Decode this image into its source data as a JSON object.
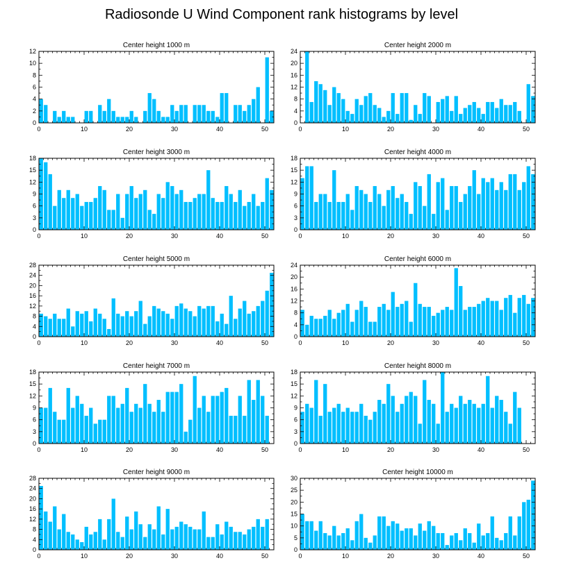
{
  "title": "Radiosonde U Wind Component rank histograms by level",
  "style": {
    "bar_color": "#00bfff",
    "axis_color": "#000000"
  },
  "chart_data": [
    {
      "type": "bar",
      "title": "Center height 1000 m",
      "x": [
        0,
        1,
        2,
        3,
        4,
        5,
        6,
        7,
        8,
        9,
        10,
        11,
        12,
        13,
        14,
        15,
        16,
        17,
        18,
        19,
        20,
        21,
        22,
        23,
        24,
        25,
        26,
        27,
        28,
        29,
        30,
        31,
        32,
        33,
        34,
        35,
        36,
        37,
        38,
        39,
        40,
        41,
        42,
        43,
        44,
        45,
        46,
        47,
        48,
        49,
        50,
        51
      ],
      "values": [
        4,
        3,
        0,
        2,
        1,
        2,
        1,
        1,
        0,
        0,
        2,
        2,
        0,
        3,
        2,
        4,
        2,
        1,
        1,
        1,
        2,
        1,
        0,
        2,
        5,
        4,
        2,
        1,
        1,
        3,
        2,
        3,
        3,
        0,
        3,
        3,
        3,
        2,
        2,
        1,
        5,
        5,
        0,
        3,
        3,
        2,
        3,
        4,
        6,
        0,
        11,
        2
      ],
      "xlim": [
        0,
        52
      ],
      "ylim": [
        0,
        12
      ],
      "yticks": [
        0,
        2,
        4,
        6,
        8,
        10,
        12
      ],
      "xticks": [
        0,
        10,
        20,
        30,
        40,
        50
      ]
    },
    {
      "type": "bar",
      "title": "Center height 2000 m",
      "x": [
        0,
        1,
        2,
        3,
        4,
        5,
        6,
        7,
        8,
        9,
        10,
        11,
        12,
        13,
        14,
        15,
        16,
        17,
        18,
        19,
        20,
        21,
        22,
        23,
        24,
        25,
        26,
        27,
        28,
        29,
        30,
        31,
        32,
        33,
        34,
        35,
        36,
        37,
        38,
        39,
        40,
        41,
        42,
        43,
        44,
        45,
        46,
        47,
        48,
        49,
        50,
        51
      ],
      "values": [
        0,
        24,
        7,
        14,
        13,
        11,
        6,
        12,
        10,
        8,
        4,
        3,
        8,
        6,
        9,
        10,
        6,
        5,
        2,
        4,
        10,
        3,
        10,
        10,
        1,
        6,
        3,
        10,
        9,
        0,
        7,
        8,
        9,
        4,
        9,
        3,
        5,
        6,
        7,
        5,
        3,
        7,
        7,
        5,
        8,
        6,
        6,
        7,
        4,
        0,
        13,
        9
      ],
      "xlim": [
        0,
        52
      ],
      "ylim": [
        0,
        24
      ],
      "yticks": [
        0,
        4,
        8,
        12,
        16,
        20,
        24
      ],
      "xticks": [
        0,
        10,
        20,
        30,
        40,
        50
      ]
    },
    {
      "type": "bar",
      "title": "Center height 3000 m",
      "x": [
        0,
        1,
        2,
        3,
        4,
        5,
        6,
        7,
        8,
        9,
        10,
        11,
        12,
        13,
        14,
        15,
        16,
        17,
        18,
        19,
        20,
        21,
        22,
        23,
        24,
        25,
        26,
        27,
        28,
        29,
        30,
        31,
        32,
        33,
        34,
        35,
        36,
        37,
        38,
        39,
        40,
        41,
        42,
        43,
        44,
        45,
        46,
        47,
        48,
        49,
        50,
        51
      ],
      "values": [
        18,
        17,
        14,
        6,
        10,
        8,
        10,
        8,
        9,
        6,
        7,
        7,
        8,
        11,
        10,
        5,
        5,
        9,
        3,
        9,
        11,
        8,
        9,
        10,
        5,
        4,
        9,
        8,
        12,
        11,
        9,
        10,
        7,
        7,
        8,
        9,
        9,
        15,
        8,
        7,
        7,
        11,
        9,
        7,
        10,
        6,
        7,
        9,
        6,
        7,
        13,
        10
      ],
      "xlim": [
        0,
        52
      ],
      "ylim": [
        0,
        18
      ],
      "yticks": [
        0,
        3,
        6,
        9,
        12,
        15,
        18
      ],
      "xticks": [
        0,
        10,
        20,
        30,
        40,
        50
      ]
    },
    {
      "type": "bar",
      "title": "Center height 4000 m",
      "x": [
        0,
        1,
        2,
        3,
        4,
        5,
        6,
        7,
        8,
        9,
        10,
        11,
        12,
        13,
        14,
        15,
        16,
        17,
        18,
        19,
        20,
        21,
        22,
        23,
        24,
        25,
        26,
        27,
        28,
        29,
        30,
        31,
        32,
        33,
        34,
        35,
        36,
        37,
        38,
        39,
        40,
        41,
        42,
        43,
        44,
        45,
        46,
        47,
        48,
        49,
        50,
        51
      ],
      "values": [
        13,
        16,
        16,
        7,
        9,
        9,
        7,
        15,
        7,
        7,
        9,
        5,
        11,
        10,
        9,
        7,
        11,
        9,
        6,
        10,
        11,
        8,
        9,
        7,
        4,
        12,
        11,
        6,
        14,
        4,
        12,
        13,
        5,
        11,
        11,
        7,
        9,
        11,
        15,
        9,
        13,
        12,
        13,
        10,
        12,
        10,
        14,
        14,
        10,
        12,
        16,
        14
      ],
      "xlim": [
        0,
        52
      ],
      "ylim": [
        0,
        18
      ],
      "yticks": [
        0,
        3,
        6,
        9,
        12,
        15,
        18
      ],
      "xticks": [
        0,
        10,
        20,
        30,
        40,
        50
      ]
    },
    {
      "type": "bar",
      "title": "Center height 5000 m",
      "x": [
        0,
        1,
        2,
        3,
        4,
        5,
        6,
        7,
        8,
        9,
        10,
        11,
        12,
        13,
        14,
        15,
        16,
        17,
        18,
        19,
        20,
        21,
        22,
        23,
        24,
        25,
        26,
        27,
        28,
        29,
        30,
        31,
        32,
        33,
        34,
        35,
        36,
        37,
        38,
        39,
        40,
        41,
        42,
        43,
        44,
        45,
        46,
        47,
        48,
        49,
        50,
        51
      ],
      "values": [
        9,
        8,
        7,
        9,
        7,
        7,
        11,
        4,
        10,
        9,
        10,
        6,
        11,
        9,
        7,
        3,
        15,
        9,
        8,
        10,
        8,
        10,
        14,
        5,
        8,
        12,
        11,
        10,
        9,
        7,
        12,
        13,
        11,
        10,
        8,
        12,
        11,
        12,
        12,
        6,
        9,
        5,
        16,
        7,
        11,
        14,
        9,
        10,
        12,
        14,
        18,
        25
      ],
      "xlim": [
        0,
        52
      ],
      "ylim": [
        0,
        28
      ],
      "yticks": [
        0,
        4,
        8,
        12,
        16,
        20,
        24,
        28
      ],
      "xticks": [
        0,
        10,
        20,
        30,
        40,
        50
      ]
    },
    {
      "type": "bar",
      "title": "Center height 6000 m",
      "x": [
        0,
        1,
        2,
        3,
        4,
        5,
        6,
        7,
        8,
        9,
        10,
        11,
        12,
        13,
        14,
        15,
        16,
        17,
        18,
        19,
        20,
        21,
        22,
        23,
        24,
        25,
        26,
        27,
        28,
        29,
        30,
        31,
        32,
        33,
        34,
        35,
        36,
        37,
        38,
        39,
        40,
        41,
        42,
        43,
        44,
        45,
        46,
        47,
        48,
        49,
        50,
        51
      ],
      "values": [
        9,
        4,
        7,
        6,
        6,
        7,
        9,
        6,
        8,
        9,
        11,
        5,
        9,
        12,
        10,
        5,
        5,
        10,
        11,
        9,
        15,
        10,
        11,
        12,
        5,
        18,
        11,
        10,
        10,
        7,
        8,
        9,
        10,
        9,
        23,
        17,
        9,
        10,
        10,
        11,
        12,
        13,
        12,
        12,
        9,
        13,
        14,
        8,
        13,
        14,
        11,
        13
      ],
      "xlim": [
        0,
        52
      ],
      "ylim": [
        0,
        24
      ],
      "yticks": [
        0,
        4,
        8,
        12,
        16,
        20,
        24
      ],
      "xticks": [
        0,
        10,
        20,
        30,
        40,
        50
      ]
    },
    {
      "type": "bar",
      "title": "Center height 7000 m",
      "x": [
        0,
        1,
        2,
        3,
        4,
        5,
        6,
        7,
        8,
        9,
        10,
        11,
        12,
        13,
        14,
        15,
        16,
        17,
        18,
        19,
        20,
        21,
        22,
        23,
        24,
        25,
        26,
        27,
        28,
        29,
        30,
        31,
        32,
        33,
        34,
        35,
        36,
        37,
        38,
        39,
        40,
        41,
        42,
        43,
        44,
        45,
        46,
        47,
        48,
        49,
        50,
        51
      ],
      "values": [
        9,
        9,
        14,
        8,
        6,
        6,
        14,
        9,
        12,
        10,
        7,
        9,
        5,
        6,
        6,
        12,
        12,
        9,
        10,
        14,
        8,
        10,
        9,
        15,
        10,
        8,
        11,
        8,
        13,
        13,
        13,
        15,
        3,
        6,
        17,
        9,
        12,
        8,
        12,
        12,
        13,
        14,
        7,
        7,
        12,
        7,
        16,
        11,
        16,
        12,
        7,
        0
      ],
      "xlim": [
        0,
        52
      ],
      "ylim": [
        0,
        18
      ],
      "yticks": [
        0,
        3,
        6,
        9,
        12,
        15,
        18
      ],
      "xticks": [
        0,
        10,
        20,
        30,
        40,
        50
      ]
    },
    {
      "type": "bar",
      "title": "Center height 8000 m",
      "x": [
        0,
        1,
        2,
        3,
        4,
        5,
        6,
        7,
        8,
        9,
        10,
        11,
        12,
        13,
        14,
        15,
        16,
        17,
        18,
        19,
        20,
        21,
        22,
        23,
        24,
        25,
        26,
        27,
        28,
        29,
        30,
        31,
        32,
        33,
        34,
        35,
        36,
        37,
        38,
        39,
        40,
        41,
        42,
        43,
        44,
        45,
        46,
        47,
        48,
        49,
        50,
        51
      ],
      "values": [
        8,
        10,
        9,
        16,
        7,
        15,
        8,
        9,
        10,
        8,
        9,
        8,
        8,
        10,
        7,
        6,
        8,
        11,
        10,
        15,
        12,
        8,
        10,
        12,
        13,
        12,
        5,
        16,
        11,
        10,
        5,
        18,
        8,
        10,
        9,
        12,
        10,
        11,
        10,
        9,
        10,
        17,
        9,
        12,
        11,
        8,
        5,
        13,
        9,
        0,
        0,
        0
      ],
      "xlim": [
        0,
        52
      ],
      "ylim": [
        0,
        18
      ],
      "yticks": [
        0,
        3,
        6,
        9,
        12,
        15,
        18
      ],
      "xticks": [
        0,
        10,
        20,
        30,
        40,
        50
      ]
    },
    {
      "type": "bar",
      "title": "Center height 9000 m",
      "x": [
        0,
        1,
        2,
        3,
        4,
        5,
        6,
        7,
        8,
        9,
        10,
        11,
        12,
        13,
        14,
        15,
        16,
        17,
        18,
        19,
        20,
        21,
        22,
        23,
        24,
        25,
        26,
        27,
        28,
        29,
        30,
        31,
        32,
        33,
        34,
        35,
        36,
        37,
        38,
        39,
        40,
        41,
        42,
        43,
        44,
        45,
        46,
        47,
        48,
        49,
        50,
        51
      ],
      "values": [
        25,
        15,
        11,
        17,
        8,
        14,
        7,
        6,
        4,
        3,
        9,
        6,
        7,
        12,
        4,
        12,
        20,
        7,
        5,
        13,
        8,
        15,
        10,
        5,
        10,
        8,
        17,
        6,
        16,
        8,
        9,
        11,
        10,
        9,
        8,
        8,
        15,
        5,
        5,
        10,
        6,
        11,
        9,
        7,
        7,
        6,
        8,
        9,
        12,
        9,
        12,
        0
      ],
      "xlim": [
        0,
        52
      ],
      "ylim": [
        0,
        28
      ],
      "yticks": [
        0,
        4,
        8,
        12,
        16,
        20,
        24,
        28
      ],
      "xticks": [
        0,
        10,
        20,
        30,
        40,
        50
      ]
    },
    {
      "type": "bar",
      "title": "Center height 10000 m",
      "x": [
        0,
        1,
        2,
        3,
        4,
        5,
        6,
        7,
        8,
        9,
        10,
        11,
        12,
        13,
        14,
        15,
        16,
        17,
        18,
        19,
        20,
        21,
        22,
        23,
        24,
        25,
        26,
        27,
        28,
        29,
        30,
        31,
        32,
        33,
        34,
        35,
        36,
        37,
        38,
        39,
        40,
        41,
        42,
        43,
        44,
        45,
        46,
        47,
        48,
        49,
        50,
        51
      ],
      "values": [
        15,
        12,
        12,
        8,
        12,
        7,
        6,
        10,
        6,
        7,
        9,
        4,
        12,
        15,
        5,
        3,
        6,
        14,
        14,
        10,
        12,
        11,
        8,
        9,
        9,
        6,
        11,
        8,
        12,
        10,
        7,
        7,
        2,
        6,
        7,
        4,
        9,
        7,
        3,
        11,
        6,
        7,
        14,
        5,
        4,
        7,
        14,
        6,
        14,
        20,
        21,
        29
      ],
      "xlim": [
        0,
        52
      ],
      "ylim": [
        0,
        30
      ],
      "yticks": [
        0,
        5,
        10,
        15,
        20,
        25,
        30
      ],
      "xticks": [
        0,
        10,
        20,
        30,
        40,
        50
      ]
    }
  ]
}
